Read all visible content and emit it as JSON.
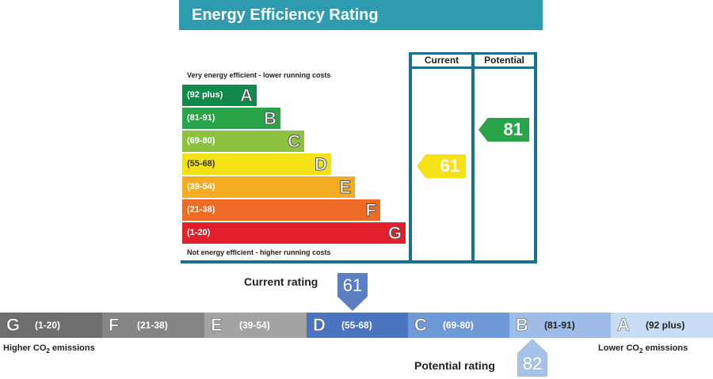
{
  "title": "Energy Efficiency Rating",
  "columns": {
    "current": "Current",
    "potential": "Potential"
  },
  "notes": {
    "top": "Very energy efficient - lower running costs",
    "bottom": "Not energy efficient - higher running costs"
  },
  "bands": [
    {
      "range": "(92 plus)",
      "letter": "A",
      "color": "#0f8a4a"
    },
    {
      "range": "(81-91)",
      "letter": "B",
      "color": "#2aa44a"
    },
    {
      "range": "(69-80)",
      "letter": "C",
      "color": "#8cc23f"
    },
    {
      "range": "(55-68)",
      "letter": "D",
      "color": "#f4e217"
    },
    {
      "range": "(39-54)",
      "letter": "E",
      "color": "#f4ad23"
    },
    {
      "range": "(21-38)",
      "letter": "F",
      "color": "#ed6b25"
    },
    {
      "range": "(1-20)",
      "letter": "G",
      "color": "#e1202b"
    }
  ],
  "current": {
    "value": "61",
    "color": "#f4e217"
  },
  "potential": {
    "value": "81",
    "color": "#2aa44a"
  },
  "co2": {
    "bands": [
      {
        "letter": "G",
        "range": "(1-20)",
        "color": "#6e6e6e"
      },
      {
        "letter": "F",
        "range": "(21-38)",
        "color": "#858585"
      },
      {
        "letter": "E",
        "range": "(39-54)",
        "color": "#a3a3a3"
      },
      {
        "letter": "D",
        "range": "(55-68)",
        "color": "#4a73c0"
      },
      {
        "letter": "C",
        "range": "(69-80)",
        "color": "#6f98d6"
      },
      {
        "letter": "B",
        "range": "(81-91)",
        "color": "#9dbde8"
      },
      {
        "letter": "A",
        "range": "(92 plus)",
        "color": "#c9def5"
      }
    ],
    "higher_label": "Higher CO",
    "lower_label": "Lower CO",
    "sub": "2",
    "emissions": " emissions",
    "current_rating_label": "Current rating",
    "current_rating_value": "61",
    "potential_rating_label": "Potential rating",
    "potential_rating_value": "82"
  }
}
